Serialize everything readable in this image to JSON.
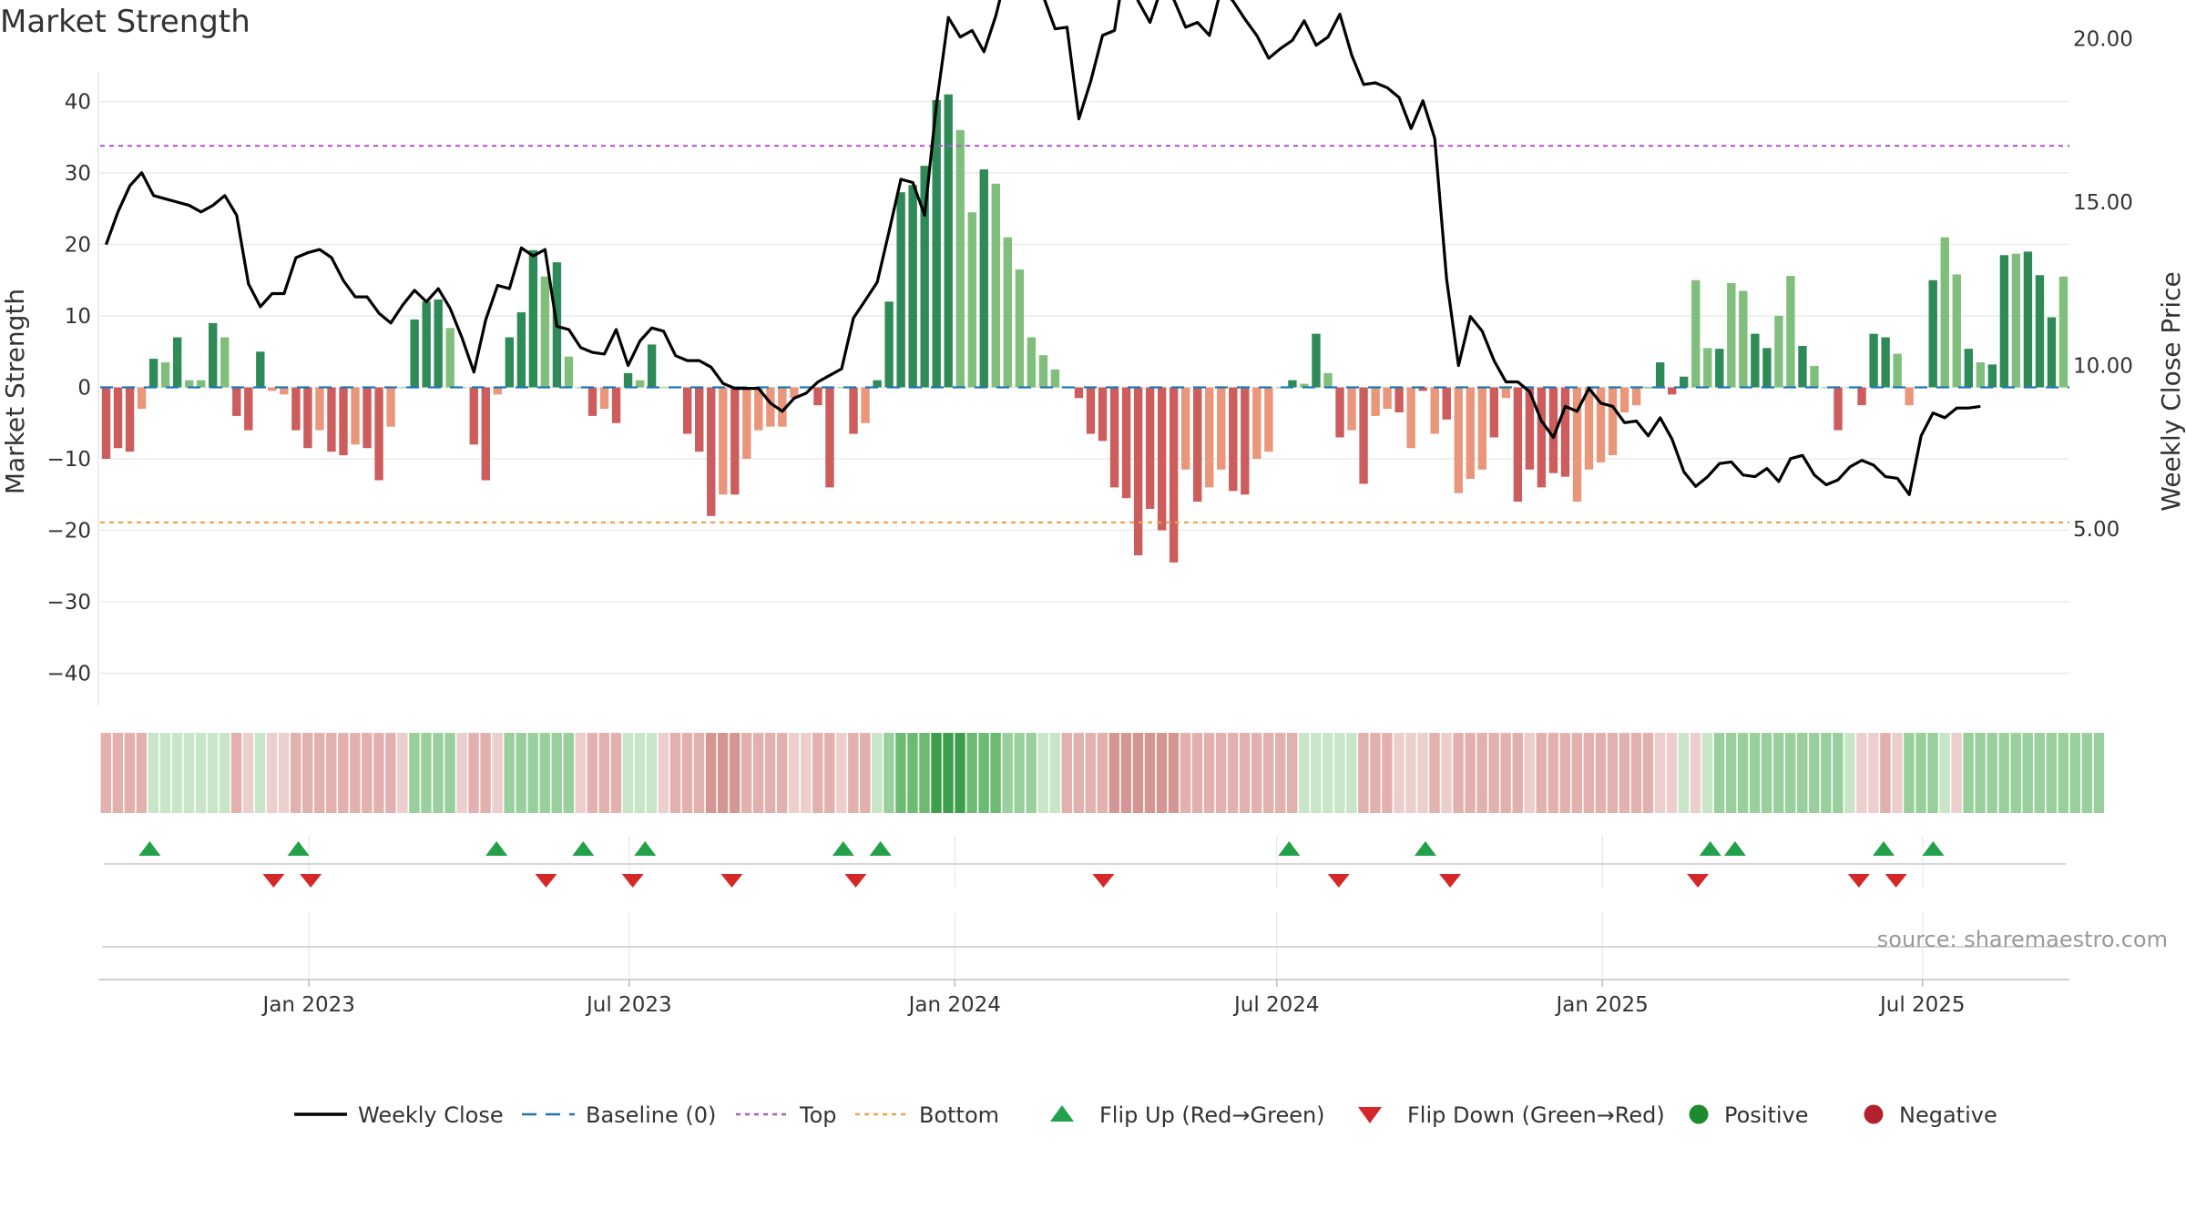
{
  "title": "Market Strength",
  "source": "source: sharemaestro.com",
  "chart_data": {
    "type": "bar",
    "title": "Market Strength",
    "ylabel": "Market Strength",
    "y2label": "Weekly Close Price",
    "ylim": [
      -45,
      45
    ],
    "y2lim": [
      4.5,
      23.9
    ],
    "yticks": [
      40,
      30,
      20,
      10,
      0,
      -10,
      -20,
      -30,
      -40
    ],
    "yticklabels": [
      "40",
      "30",
      "20",
      "10",
      "0",
      "−10",
      "−20",
      "−30",
      "−40"
    ],
    "y2ticks": [
      20.0,
      15.0,
      10.0,
      5.0
    ],
    "y2ticklabels": [
      "20.00",
      "15.00",
      "10.00",
      "5.00"
    ],
    "x_start": "2022-09-05",
    "x_end": "2025-09-22",
    "xticks": [
      "2023-01-01",
      "2023-07-01",
      "2024-01-01",
      "2024-07-01",
      "2025-01-01",
      "2025-07-01"
    ],
    "xticklabels": [
      "Jan 2023",
      "Jul 2023",
      "Jan 2024",
      "Jul 2024",
      "Jan 2025",
      "Jul 2025"
    ],
    "top_level": 33.8,
    "bottom_level": -18.9,
    "baseline": 0,
    "grid": true,
    "legend_position": "bottom",
    "colors": {
      "pos_strong": "#2e8b57",
      "pos_weak": "#7fbf7b",
      "neg_strong": "#cd5c5c",
      "neg_weak": "#e9967a",
      "close": "#000000",
      "top": "#b05cc6",
      "bottom": "#f0a050",
      "baseline": "#1f77b4",
      "flip_up": "#22a04a",
      "flip_down": "#d62728"
    },
    "strength": [
      -10,
      -8.5,
      -9,
      -3,
      4,
      3.5,
      7,
      1,
      1,
      9,
      7,
      -4,
      -6,
      5,
      -0.5,
      -1,
      -6,
      -8.5,
      -6,
      -9,
      -9.5,
      -8,
      -8.5,
      -13,
      -5.5,
      0,
      9.5,
      12,
      12.3,
      8.3,
      0,
      -8,
      -13,
      -1,
      7,
      10.5,
      19.2,
      15.5,
      17.5,
      4.3,
      0,
      -4,
      -3,
      -5,
      2,
      1,
      6,
      0,
      0,
      -6.5,
      -9,
      -18,
      -15,
      -15,
      -10,
      -6,
      -5.5,
      -5.5,
      -1.5,
      0,
      -2.5,
      -14,
      0,
      -6.5,
      -5,
      1,
      12,
      27.3,
      28.3,
      31,
      40.2,
      41,
      36,
      24.5,
      30.5,
      28.5,
      21,
      16.5,
      7,
      4.5,
      2.5,
      0,
      -1.5,
      -6.5,
      -7.5,
      -14,
      -15.5,
      -23.5,
      -17,
      -20,
      -24.5,
      -11.5,
      -16,
      -14,
      -11.5,
      -14.5,
      -15,
      -10,
      -9,
      0,
      1,
      0.5,
      7.5,
      2,
      -7,
      -6,
      -13.5,
      -4,
      -3,
      -3.5,
      -8.5,
      -0.5,
      -6.5,
      -4.5,
      -14.8,
      -12.8,
      -11.5,
      -7,
      -1.5,
      -16,
      -11.5,
      -14,
      -12,
      -12.5,
      -16,
      -11.5,
      -10.5,
      -9.5,
      -3.5,
      -2.5,
      0,
      3.5,
      -1,
      1.5,
      15,
      5.5,
      5.4,
      14.6,
      13.5,
      7.5,
      5.5,
      10,
      15.6,
      5.8,
      3,
      0,
      -6,
      0,
      -2.5,
      7.5,
      7,
      4.7,
      -2.5,
      0,
      15,
      21,
      15.8,
      5.4,
      3.5,
      3.2,
      18.5,
      18.7,
      19,
      15.7,
      9.8,
      15.5
    ],
    "strong": [
      1,
      1,
      1,
      0,
      1,
      0,
      1,
      0,
      0,
      1,
      0,
      1,
      1,
      1,
      0,
      0,
      1,
      1,
      0,
      1,
      1,
      0,
      1,
      1,
      0,
      0,
      1,
      1,
      1,
      0,
      0,
      1,
      1,
      0,
      1,
      1,
      1,
      0,
      1,
      0,
      0,
      1,
      0,
      1,
      1,
      0,
      1,
      0,
      0,
      1,
      1,
      1,
      0,
      1,
      0,
      0,
      0,
      0,
      0,
      0,
      1,
      1,
      0,
      1,
      0,
      1,
      1,
      1,
      1,
      1,
      1,
      1,
      0,
      0,
      1,
      0,
      0,
      0,
      0,
      0,
      0,
      0,
      1,
      1,
      1,
      1,
      1,
      1,
      1,
      1,
      1,
      0,
      1,
      0,
      0,
      1,
      1,
      0,
      0,
      0,
      1,
      0,
      1,
      0,
      1,
      0,
      1,
      0,
      0,
      1,
      0,
      1,
      0,
      1,
      0,
      0,
      0,
      1,
      0,
      1,
      1,
      1,
      1,
      1,
      0,
      0,
      0,
      0,
      0,
      0,
      1,
      1,
      1,
      1,
      0,
      0,
      1,
      0,
      0,
      1,
      1,
      0,
      0,
      1,
      0,
      0,
      1,
      0,
      1,
      1,
      1,
      0,
      0,
      1,
      1,
      0,
      0,
      1,
      0,
      1,
      1,
      0,
      1,
      1,
      1,
      0,
      1
    ],
    "close": [
      13.7,
      14.7,
      15.5,
      15.9,
      15.2,
      15.1,
      15.0,
      14.9,
      14.7,
      14.9,
      15.2,
      14.6,
      12.5,
      11.8,
      12.2,
      12.2,
      13.3,
      13.45,
      13.55,
      13.3,
      12.6,
      12.1,
      12.1,
      11.6,
      11.3,
      11.85,
      12.3,
      11.95,
      12.35,
      11.75,
      10.85,
      9.8,
      11.4,
      12.45,
      12.35,
      13.6,
      13.35,
      13.55,
      11.2,
      11.1,
      10.55,
      10.4,
      10.35,
      11.1,
      10.0,
      10.75,
      11.15,
      11.05,
      10.3,
      10.15,
      10.15,
      9.95,
      9.45,
      9.3,
      9.3,
      9.3,
      8.85,
      8.6,
      9.0,
      9.15,
      9.5,
      9.7,
      9.9,
      11.45,
      12.0,
      12.55,
      14.1,
      15.7,
      15.6,
      14.6,
      18.0,
      20.65,
      20.05,
      20.25,
      19.6,
      20.7,
      22.15,
      21.9,
      21.3,
      21.3,
      20.3,
      20.35,
      17.55,
      18.7,
      20.1,
      20.25,
      22.5,
      21.15,
      20.5,
      21.6,
      21.2,
      20.35,
      20.5,
      20.1,
      21.55,
      21.15,
      20.6,
      20.1,
      19.4,
      19.7,
      19.95,
      20.55,
      19.8,
      20.05,
      20.75,
      19.5,
      18.6,
      18.65,
      18.5,
      18.2,
      17.25,
      18.1,
      16.95,
      12.65,
      10.0,
      11.5,
      11.05,
      10.15,
      9.5,
      9.5,
      9.2,
      8.3,
      7.8,
      8.75,
      8.6,
      9.3,
      8.85,
      8.75,
      8.25,
      8.3,
      7.85,
      8.4,
      7.75,
      6.75,
      6.3,
      6.6,
      7.0,
      7.05,
      6.65,
      6.6,
      6.85,
      6.45,
      7.15,
      7.25,
      6.65,
      6.35,
      6.5,
      6.9,
      7.1,
      6.95,
      6.6,
      6.55,
      6.05,
      7.85,
      8.55,
      8.4,
      8.7,
      8.7,
      8.75
    ],
    "heat": [
      -2,
      -2,
      -2,
      -2,
      1,
      1,
      1,
      1,
      1,
      1,
      1,
      -2,
      -1,
      1,
      -1,
      -1,
      -2,
      -2,
      -2,
      -2,
      -2,
      -2,
      -2,
      -2,
      -2,
      -1,
      2,
      2,
      2,
      2,
      -1,
      -2,
      -2,
      -1,
      2,
      2,
      2,
      2,
      2,
      2,
      -1,
      -2,
      -2,
      -2,
      1,
      1,
      1,
      -1,
      -2,
      -2,
      -2,
      -3,
      -3,
      -3,
      -2,
      -2,
      -2,
      -2,
      -1,
      -1,
      -2,
      -2,
      -1,
      -2,
      -2,
      1,
      2,
      3,
      3,
      3,
      4,
      4,
      4,
      3,
      3,
      3,
      2,
      2,
      2,
      1,
      1,
      -2,
      -2,
      -2,
      -2,
      -3,
      -3,
      -3,
      -3,
      -3,
      -3,
      -2,
      -2,
      -2,
      -2,
      -2,
      -2,
      -2,
      -2,
      -2,
      -2,
      1,
      1,
      1,
      1,
      1,
      -2,
      -2,
      -2,
      -1,
      -1,
      -1,
      -2,
      -1,
      -2,
      -2,
      -2,
      -2,
      -2,
      -2,
      -1,
      -2,
      -2,
      -2,
      -2,
      -2,
      -2,
      -2,
      -2,
      -2,
      -2,
      -1,
      -1,
      1,
      -1,
      1,
      2,
      2,
      2,
      2,
      2,
      2,
      2,
      2,
      2,
      2,
      2,
      1,
      -1,
      -1,
      -2,
      -1,
      2,
      2,
      2,
      1,
      -1,
      2,
      2,
      2,
      2,
      2,
      2,
      2,
      2,
      2,
      2,
      2,
      2
    ],
    "flips_up": [
      "2022-10-03",
      "2022-12-26",
      "2023-04-17",
      "2023-06-05",
      "2023-07-10",
      "2023-10-30",
      "2023-11-20",
      "2024-07-08",
      "2024-09-23",
      "2025-03-03",
      "2025-03-17",
      "2025-06-09",
      "2025-07-07"
    ],
    "flips_down": [
      "2022-12-12",
      "2023-01-02",
      "2023-05-15",
      "2023-07-03",
      "2023-08-28",
      "2023-11-06",
      "2024-03-25",
      "2024-08-05",
      "2024-10-07",
      "2025-02-24",
      "2025-05-26",
      "2025-06-16"
    ],
    "legend": [
      {
        "label": "Weekly Close",
        "kind": "line"
      },
      {
        "label": "Baseline (0)",
        "kind": "dash"
      },
      {
        "label": "Top",
        "kind": "dot-purple"
      },
      {
        "label": "Bottom",
        "kind": "dot-orange"
      },
      {
        "label": "Flip Up (Red→Green)",
        "kind": "tri-up"
      },
      {
        "label": "Flip Down (Green→Red)",
        "kind": "tri-down"
      },
      {
        "label": "Positive",
        "kind": "circle-green"
      },
      {
        "label": "Negative",
        "kind": "circle-red"
      }
    ]
  }
}
